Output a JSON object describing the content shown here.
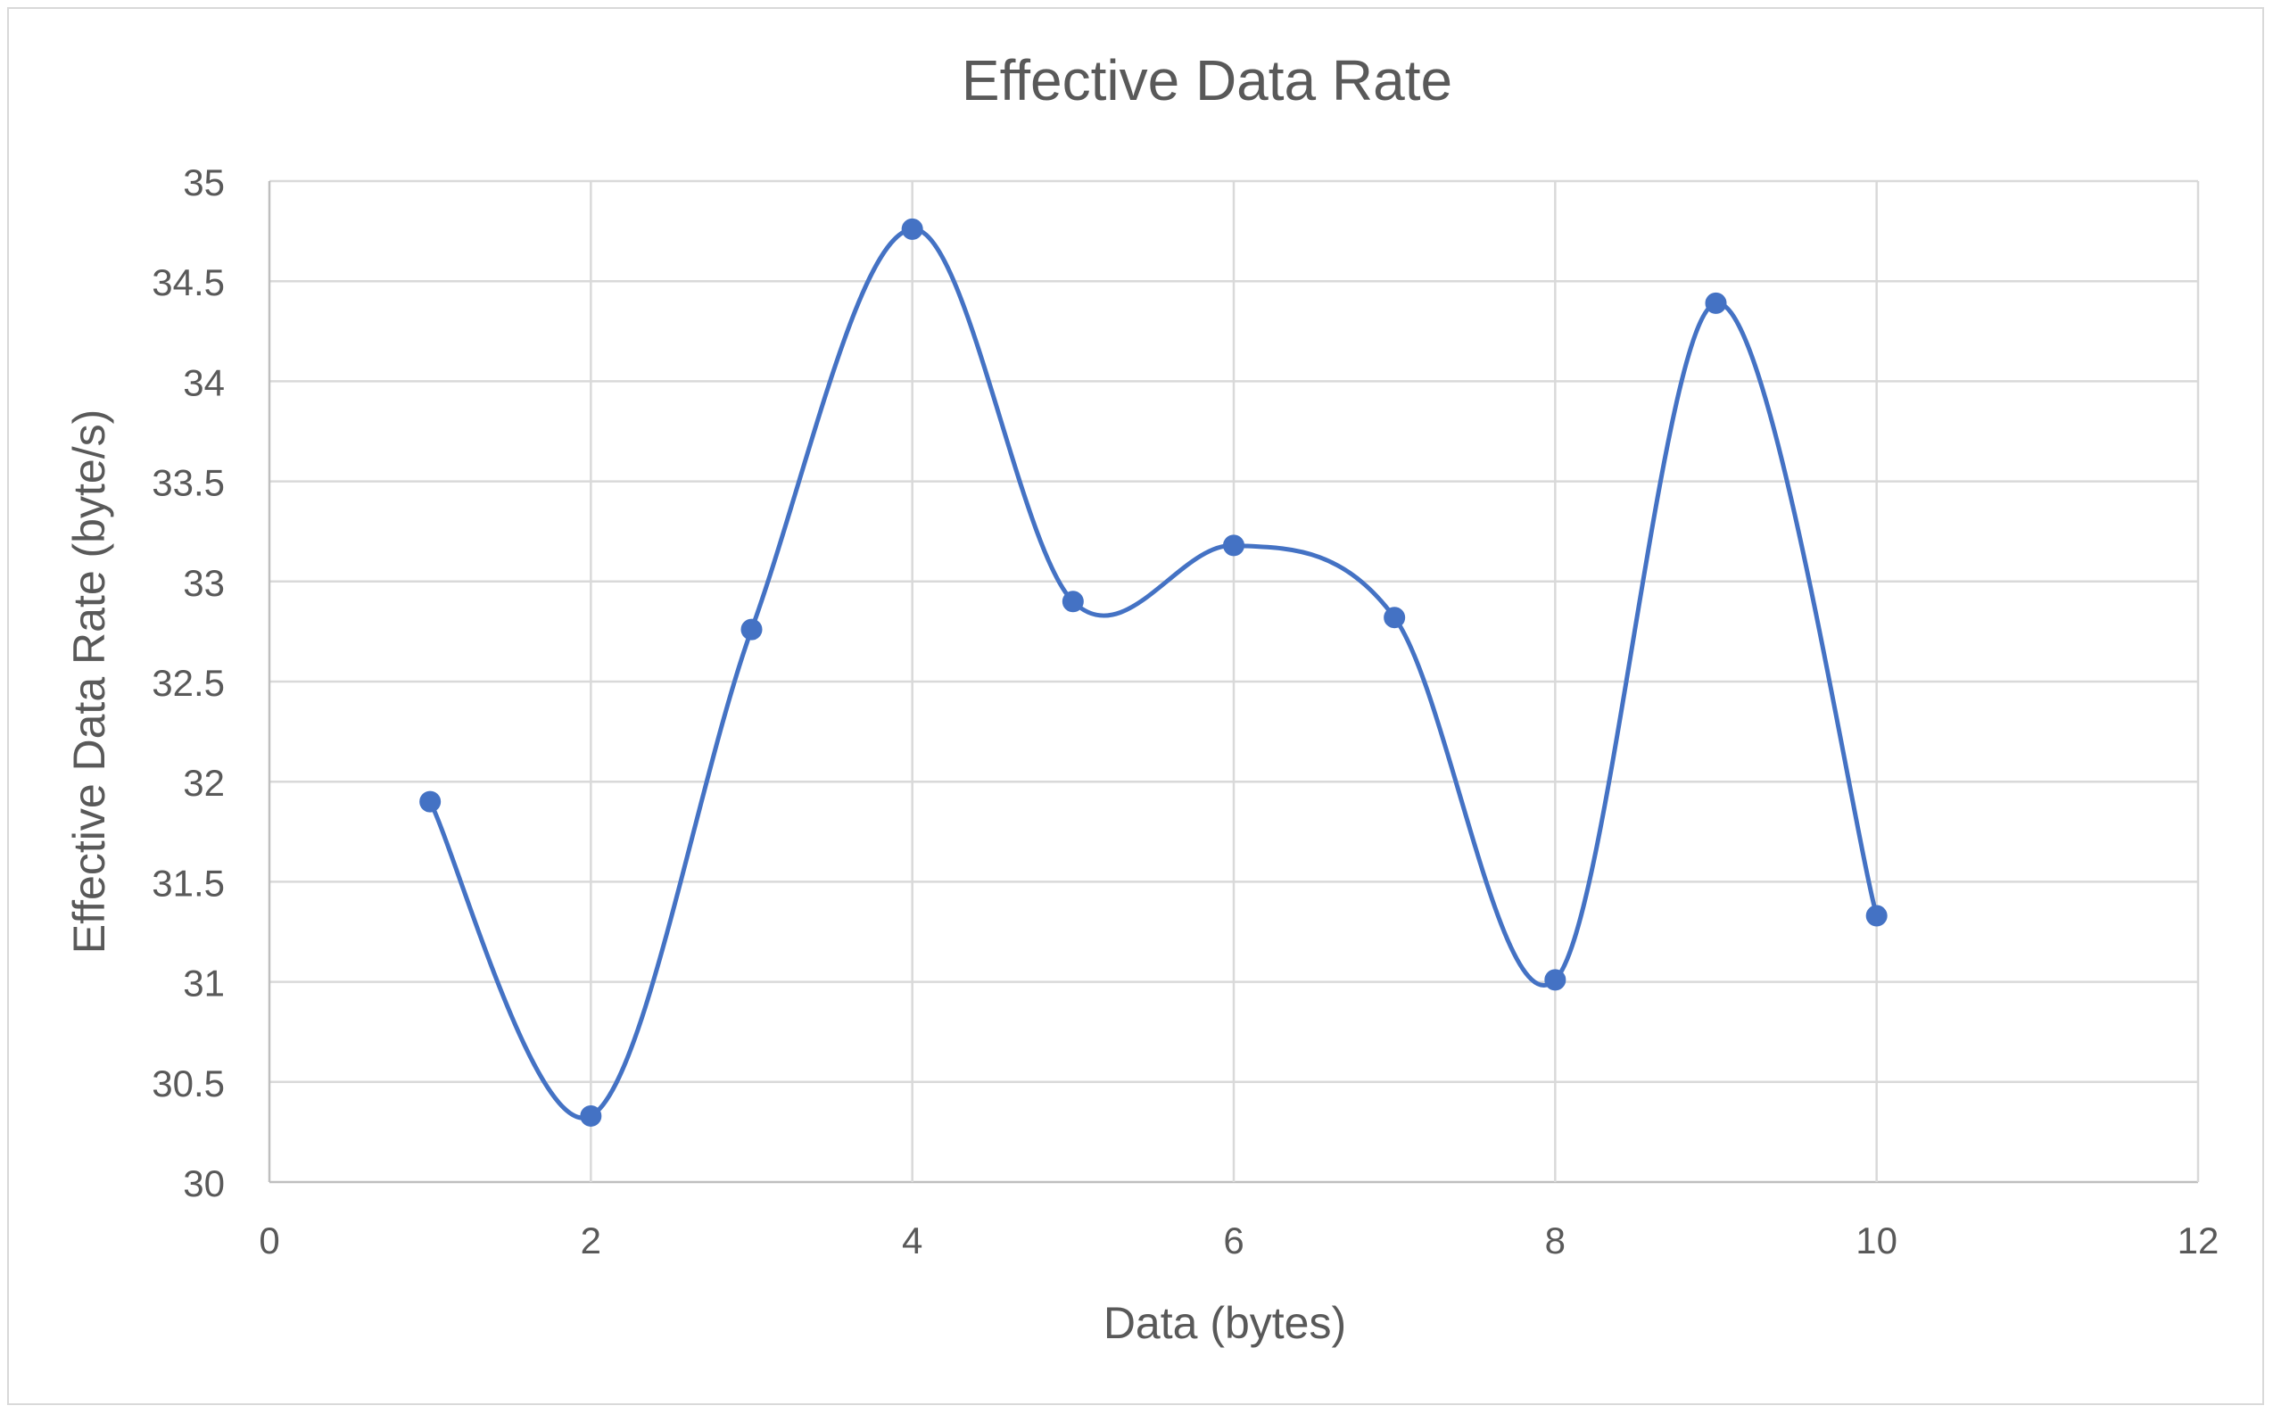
{
  "chart_data": {
    "type": "scatter",
    "style": "smooth-line-with-markers",
    "title": "Effective Data Rate",
    "xlabel": "Data (bytes)",
    "ylabel": "Effective Data Rate (byte/s)",
    "xlim": [
      0,
      12
    ],
    "ylim": [
      30,
      35
    ],
    "xticks": [
      0,
      2,
      4,
      6,
      8,
      10,
      12
    ],
    "yticks": [
      30,
      30.5,
      31,
      31.5,
      32,
      32.5,
      33,
      33.5,
      34,
      34.5,
      35
    ],
    "grid": true,
    "legend": "none",
    "series": [
      {
        "x": [
          1,
          2,
          3,
          4,
          5,
          6,
          7,
          8,
          9,
          10
        ],
        "y": [
          31.9,
          30.33,
          32.76,
          34.76,
          32.9,
          33.18,
          32.82,
          31.01,
          34.39,
          31.33
        ],
        "color": "#4472c4"
      }
    ]
  }
}
